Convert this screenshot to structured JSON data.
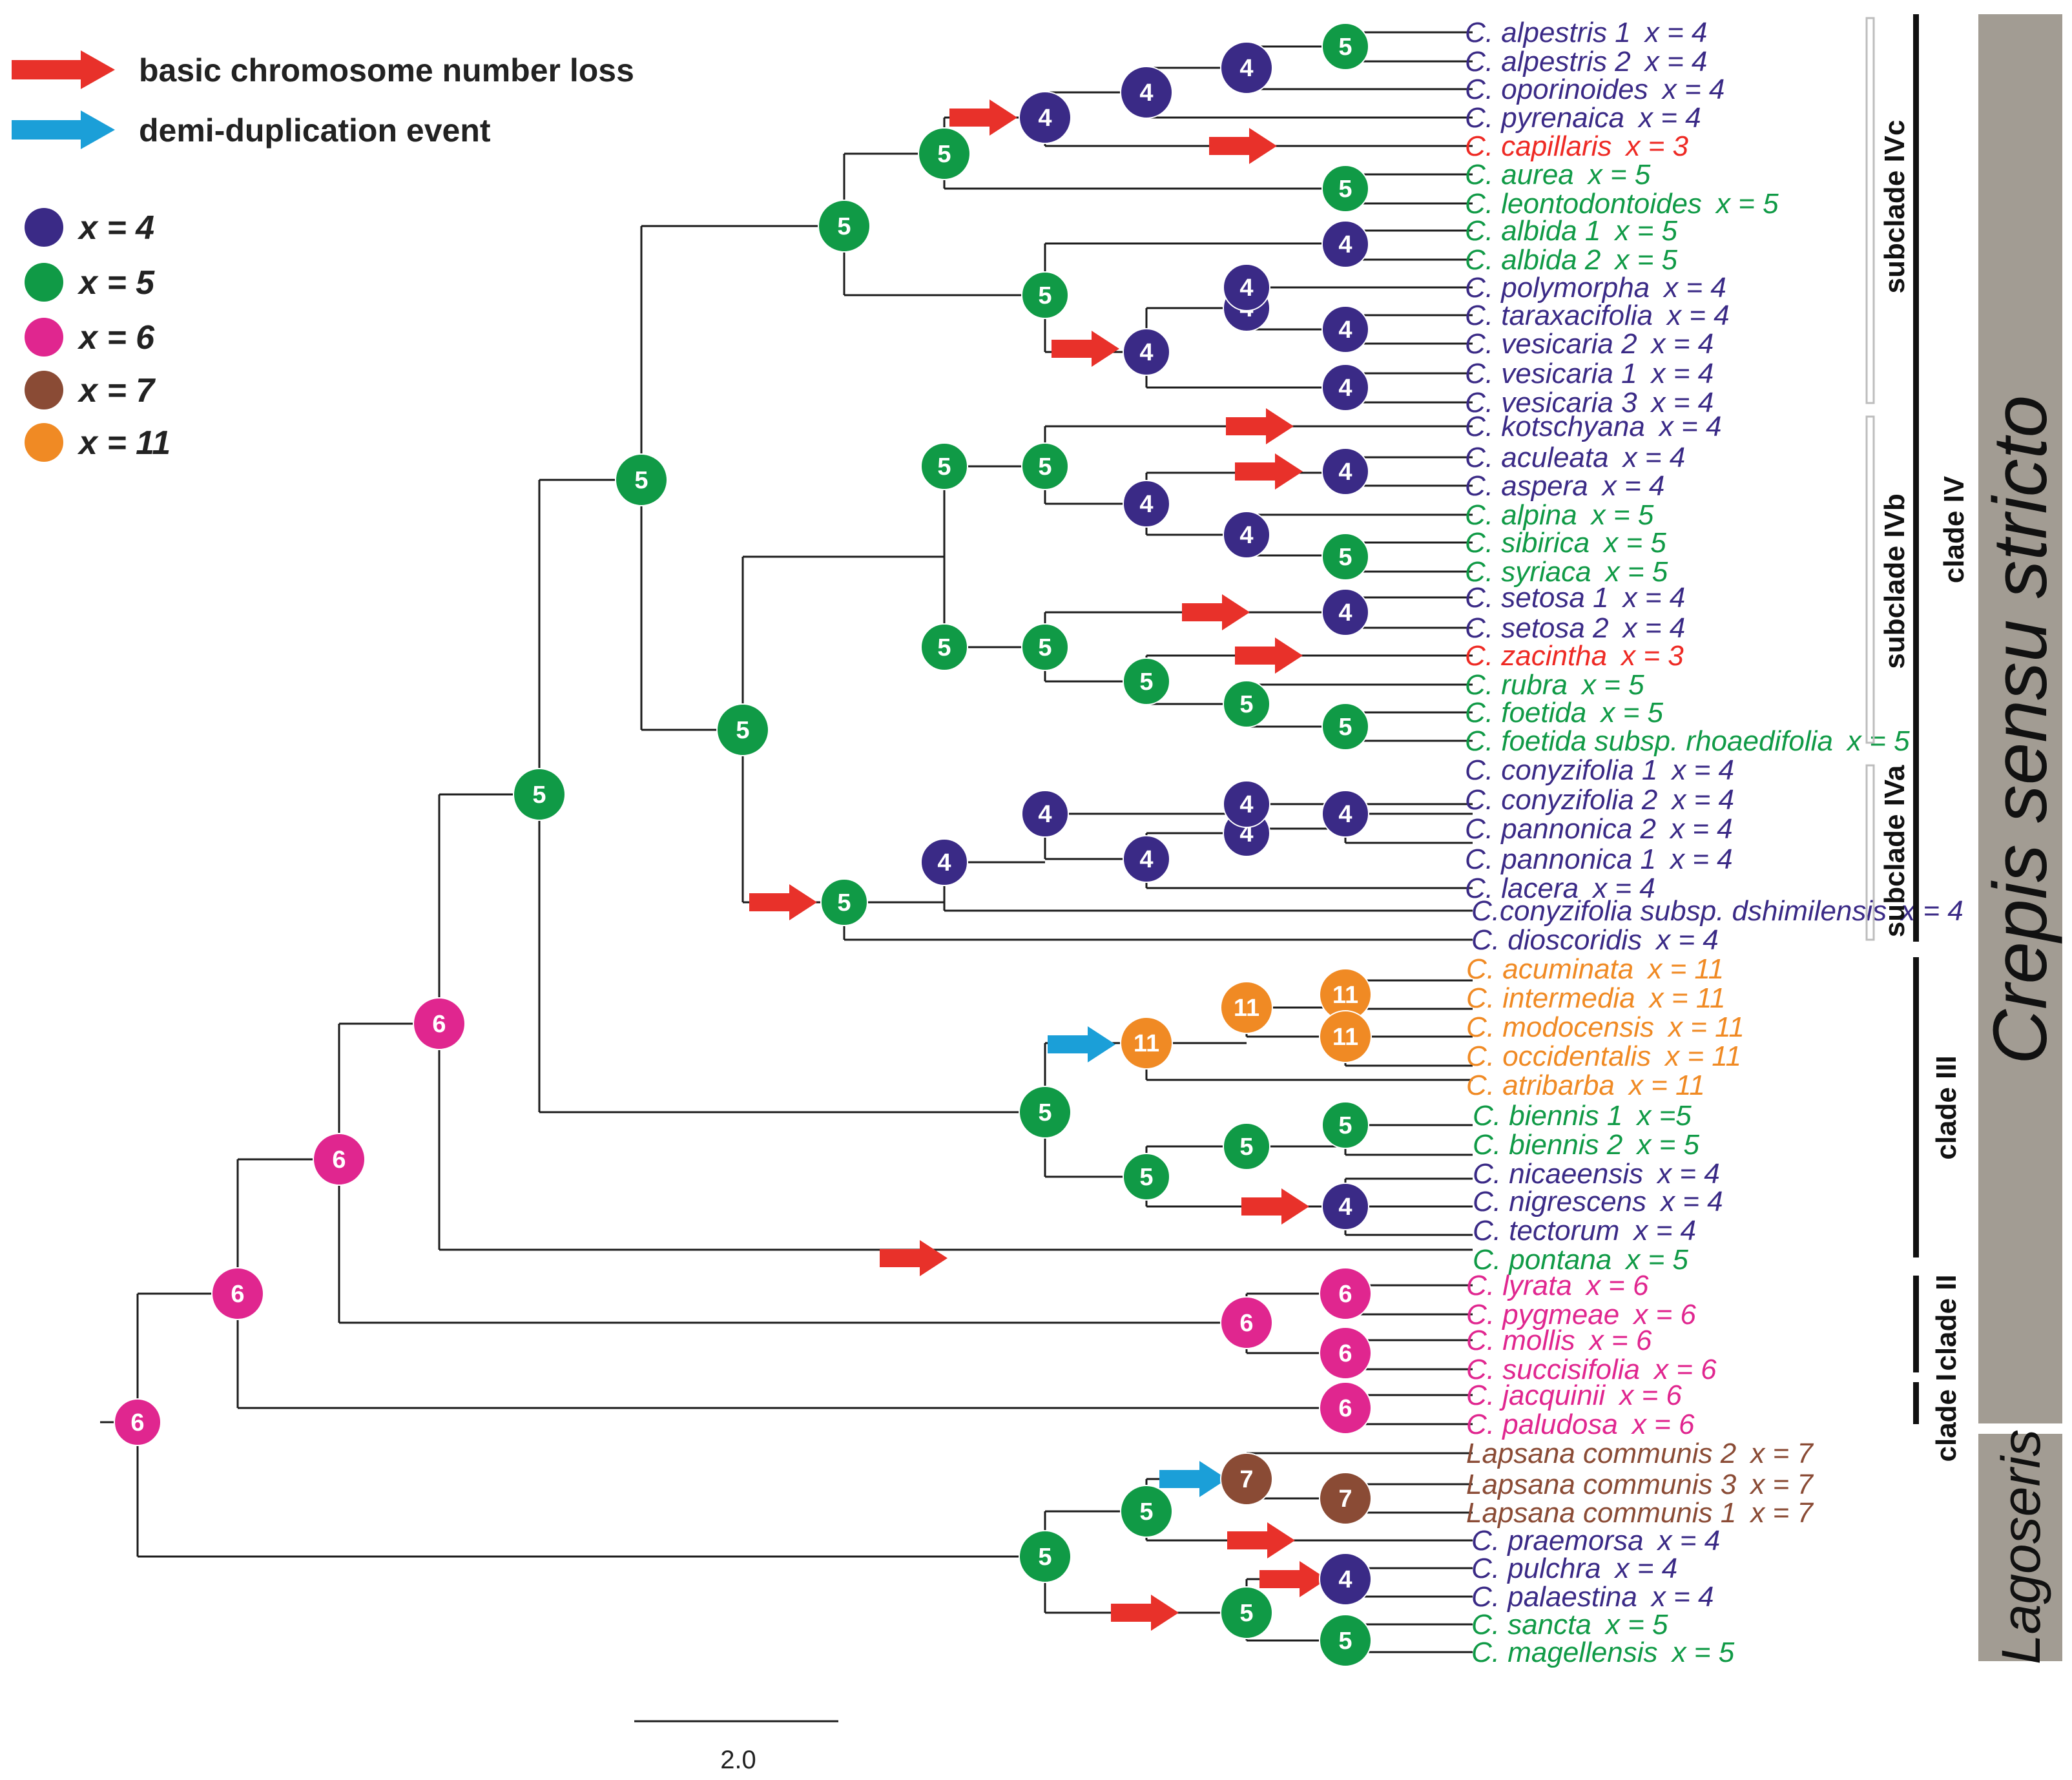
{
  "colors": {
    "x4": "#3a2a86",
    "x5": "#109a46",
    "x6": "#e0268f",
    "x7": "#8a4b35",
    "x11": "#f08a24",
    "x3": "#ee2a24",
    "loss_arrow": "#e8312a",
    "dup_arrow": "#1b9fd8",
    "band": "#a29c93"
  },
  "legend": {
    "loss": "basic chromosome number loss",
    "dup": "demi-duplication event",
    "states": [
      {
        "label": "x = 4",
        "color": "#3a2a86"
      },
      {
        "label": "x = 5",
        "color": "#109a46"
      },
      {
        "label": "x = 6",
        "color": "#e0268f"
      },
      {
        "label": "x = 7",
        "color": "#8a4b35"
      },
      {
        "label": "x = 11",
        "color": "#f08a24"
      }
    ]
  },
  "taxa": [
    {
      "name": "C. alpestris 1",
      "x": "x = 4",
      "state": 4
    },
    {
      "name": "C. alpestris 2",
      "x": "x = 4",
      "state": 4
    },
    {
      "name": "C. oporinoides",
      "x": "x = 4",
      "state": 4
    },
    {
      "name": "C. pyrenaica",
      "x": "x = 4",
      "state": 4
    },
    {
      "name": "C. capillaris",
      "x": "x = 3",
      "state": 3
    },
    {
      "name": "C. aurea",
      "x": "x = 5",
      "state": 5
    },
    {
      "name": "C. leontodontoides",
      "x": "x = 5",
      "state": 5
    },
    {
      "name": "C. albida 1",
      "x": "x = 5",
      "state": 5
    },
    {
      "name": "C. albida 2",
      "x": "x = 5",
      "state": 5
    },
    {
      "name": "C. polymorpha",
      "x": "x = 4",
      "state": 4
    },
    {
      "name": "C. taraxacifolia",
      "x": "x = 4",
      "state": 4
    },
    {
      "name": "C. vesicaria 2",
      "x": "x = 4",
      "state": 4
    },
    {
      "name": "C. vesicaria 1",
      "x": "x = 4",
      "state": 4
    },
    {
      "name": "C. vesicaria 3",
      "x": "x = 4",
      "state": 4
    },
    {
      "name": "C. kotschyana",
      "x": "x = 4",
      "state": 4
    },
    {
      "name": "C. aculeata",
      "x": "x = 4",
      "state": 4
    },
    {
      "name": "C. aspera",
      "x": "x = 4",
      "state": 4
    },
    {
      "name": "C. alpina",
      "x": "x = 5",
      "state": 5
    },
    {
      "name": "C. sibirica",
      "x": "x = 5",
      "state": 5
    },
    {
      "name": "C. syriaca",
      "x": "x = 5",
      "state": 5
    },
    {
      "name": "C. setosa 1",
      "x": "x = 4",
      "state": 4
    },
    {
      "name": "C. setosa 2",
      "x": "x = 4",
      "state": 4
    },
    {
      "name": "C. zacintha",
      "x": "x = 3",
      "state": 3
    },
    {
      "name": "C. rubra",
      "x": "x = 5",
      "state": 5
    },
    {
      "name": "C. foetida",
      "x": "x = 5",
      "state": 5
    },
    {
      "name": "C. foetida subsp. rhoaedifolia",
      "x": "x = 5",
      "state": 5
    },
    {
      "name": "C. conyzifolia 1",
      "x": "x = 4",
      "state": 4
    },
    {
      "name": "C. conyzifolia 2",
      "x": "x = 4",
      "state": 4
    },
    {
      "name": "C. pannonica 2",
      "x": "x = 4",
      "state": 4
    },
    {
      "name": "C. pannonica 1",
      "x": "x = 4",
      "state": 4
    },
    {
      "name": "C. lacera",
      "x": "x = 4",
      "state": 4
    },
    {
      "name": "C.conyzifolia subsp. dshimilensis",
      "x": "x = 4",
      "state": 4
    },
    {
      "name": "C. dioscoridis",
      "x": "x = 4",
      "state": 4
    },
    {
      "name": "C. acuminata",
      "x": "x = 11",
      "state": 11
    },
    {
      "name": "C. intermedia",
      "x": "x = 11",
      "state": 11
    },
    {
      "name": "C. modocensis",
      "x": "x = 11",
      "state": 11
    },
    {
      "name": "C. occidentalis",
      "x": "x = 11",
      "state": 11
    },
    {
      "name": "C. atribarba",
      "x": "x = 11",
      "state": 11
    },
    {
      "name": "C. biennis 1",
      "x": "x =5",
      "state": 5
    },
    {
      "name": "C. biennis 2",
      "x": "x = 5",
      "state": 5
    },
    {
      "name": "C. nicaeensis",
      "x": "x = 4",
      "state": 4
    },
    {
      "name": "C. nigrescens",
      "x": "x = 4",
      "state": 4
    },
    {
      "name": "C. tectorum",
      "x": "x = 4",
      "state": 4
    },
    {
      "name": "C. pontana",
      "x": "x = 5",
      "state": 5
    },
    {
      "name": "C. lyrata",
      "x": "x = 6",
      "state": 6
    },
    {
      "name": "C. pygmeae",
      "x": "x = 6",
      "state": 6
    },
    {
      "name": "C. mollis",
      "x": "x = 6",
      "state": 6
    },
    {
      "name": "C. succisifolia",
      "x": "x = 6",
      "state": 6
    },
    {
      "name": "C. jacquinii",
      "x": "x = 6",
      "state": 6
    },
    {
      "name": "C. paludosa",
      "x": "x = 6",
      "state": 6
    },
    {
      "name": "Lapsana communis 2",
      "x": "x = 7",
      "state": 7
    },
    {
      "name": "Lapsana communis 3",
      "x": "x = 7",
      "state": 7
    },
    {
      "name": "Lapsana communis 1",
      "x": "x = 7",
      "state": 7
    },
    {
      "name": "C. praemorsa",
      "x": "x = 4",
      "state": 4
    },
    {
      "name": "C. pulchra",
      "x": "x = 4",
      "state": 4
    },
    {
      "name": "C. palaestina",
      "x": "x = 4",
      "state": 4
    },
    {
      "name": "C. sancta",
      "x": "x = 5",
      "state": 5
    },
    {
      "name": "C. magellensis",
      "x": "x = 5",
      "state": 5
    }
  ],
  "nodes": [
    {
      "label": "6",
      "state": 6
    },
    {
      "label": "6",
      "state": 6
    },
    {
      "label": "6",
      "state": 6
    },
    {
      "label": "6",
      "state": 6
    },
    {
      "label": "5",
      "state": 5
    },
    {
      "label": "5",
      "state": 5
    },
    {
      "label": "5",
      "state": 5
    },
    {
      "label": "5",
      "state": 5
    },
    {
      "label": "5",
      "state": 5
    },
    {
      "label": "4",
      "state": 4
    },
    {
      "label": "4",
      "state": 4
    },
    {
      "label": "4",
      "state": 4
    },
    {
      "label": "5",
      "state": 5
    },
    {
      "label": "5",
      "state": 5
    },
    {
      "label": "5",
      "state": 5
    },
    {
      "label": "4",
      "state": 4
    },
    {
      "label": "4",
      "state": 4
    },
    {
      "label": "4",
      "state": 4
    },
    {
      "label": "4",
      "state": 4
    },
    {
      "label": "4",
      "state": 4
    },
    {
      "label": "4",
      "state": 4
    },
    {
      "label": "5",
      "state": 5
    },
    {
      "label": "5",
      "state": 5
    },
    {
      "label": "4",
      "state": 4
    },
    {
      "label": "4",
      "state": 4
    },
    {
      "label": "4",
      "state": 4
    },
    {
      "label": "5",
      "state": 5
    },
    {
      "label": "5",
      "state": 5
    },
    {
      "label": "5",
      "state": 5
    },
    {
      "label": "4",
      "state": 4
    },
    {
      "label": "5",
      "state": 5
    },
    {
      "label": "5",
      "state": 5
    },
    {
      "label": "5",
      "state": 5
    },
    {
      "label": "5",
      "state": 5
    },
    {
      "label": "4",
      "state": 4
    },
    {
      "label": "4",
      "state": 4
    },
    {
      "label": "4",
      "state": 4
    },
    {
      "label": "4",
      "state": 4
    },
    {
      "label": "4",
      "state": 4
    },
    {
      "label": "4",
      "state": 4
    },
    {
      "label": "5",
      "state": 5
    },
    {
      "label": "11",
      "state": 11
    },
    {
      "label": "11",
      "state": 11
    },
    {
      "label": "11",
      "state": 11
    },
    {
      "label": "11",
      "state": 11
    },
    {
      "label": "5",
      "state": 5
    },
    {
      "label": "5",
      "state": 5
    },
    {
      "label": "5",
      "state": 5
    },
    {
      "label": "4",
      "state": 4
    },
    {
      "label": "6",
      "state": 6
    },
    {
      "label": "6",
      "state": 6
    },
    {
      "label": "6",
      "state": 6
    },
    {
      "label": "6",
      "state": 6
    },
    {
      "label": "5",
      "state": 5
    },
    {
      "label": "5",
      "state": 5
    },
    {
      "label": "7",
      "state": 7
    },
    {
      "label": "7",
      "state": 7
    },
    {
      "label": "5",
      "state": 5
    },
    {
      "label": "4",
      "state": 4
    },
    {
      "label": "5",
      "state": 5
    }
  ],
  "annotations": {
    "subclade_IVc": "subclade IVc",
    "subclade_IVb": "subclade IVb",
    "subclade_IVa": "subclade IVa",
    "clade_IV": "clade IV",
    "clade_III": "clade III",
    "clade_II": "clade II",
    "clade_I": "clade I",
    "crepis": "Crepis sensu stricto",
    "lagoseris": "Lagoseris"
  },
  "scale_bar": {
    "label": "2.0"
  }
}
